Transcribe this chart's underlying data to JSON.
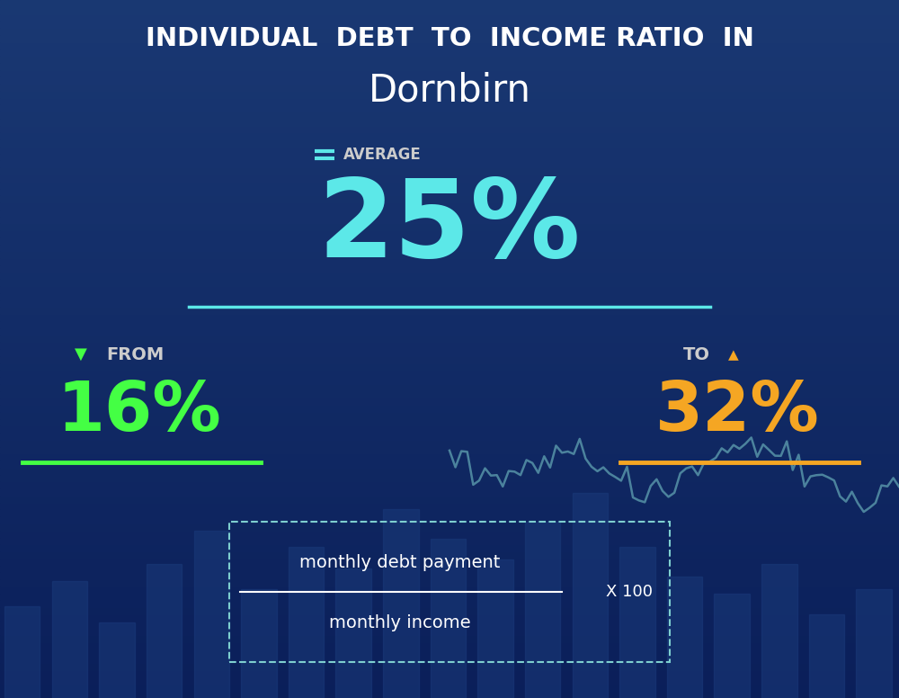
{
  "title_line1": "INDIVIDUAL  DEBT  TO  INCOME RATIO  IN",
  "title_line2": "Dornbirn",
  "avg_label": "AVERAGE",
  "avg_value": "25%",
  "from_label": "FROM",
  "from_value": "16%",
  "to_label": "TO",
  "to_value": "32%",
  "formula_numerator": "monthly debt payment",
  "formula_denominator": "monthly income",
  "formula_multiplier": "X 100",
  "bg_color": "#0a1f5c",
  "avg_color": "#5ce8e8",
  "from_color": "#44ff44",
  "to_color": "#f5a623",
  "title_color": "#ffffff",
  "subtitle_color": "#ffffff",
  "avg_label_color": "#cccccc",
  "formula_color": "#ffffff",
  "line_avg_color": "#5ce8e8",
  "line_from_color": "#44ff44",
  "line_to_color": "#f5a623",
  "bar_color": "#1a3a7a",
  "line_chart_color": "#7ecfcf"
}
